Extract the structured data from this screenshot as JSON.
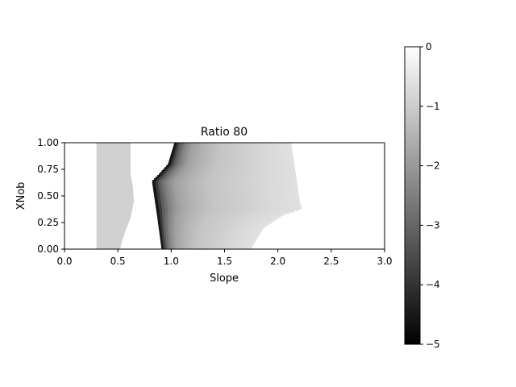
{
  "chart_data": {
    "type": "heatmap",
    "title": "Ratio 80",
    "xlabel": "Slope",
    "ylabel": "XNob",
    "xlim": [
      0.0,
      3.0
    ],
    "ylim": [
      0.0,
      1.0
    ],
    "xticks": [
      0.0,
      0.5,
      1.0,
      1.5,
      2.0,
      2.5,
      3.0
    ],
    "xtick_labels": [
      "0.0",
      "0.5",
      "1.0",
      "1.5",
      "2.0",
      "2.5",
      "3.0"
    ],
    "yticks": [
      0.0,
      0.25,
      0.5,
      0.75,
      1.0
    ],
    "ytick_labels": [
      "0.00",
      "0.25",
      "0.50",
      "0.75",
      "1.00"
    ],
    "grid": false,
    "colormap": "gray",
    "colorbar": {
      "vmin": -5,
      "vmax": 0,
      "ticks": [
        0,
        -1,
        -2,
        -3,
        -4,
        -5
      ],
      "tick_labels": [
        "0",
        "−1",
        "−2",
        "−3",
        "−4",
        "−5"
      ],
      "placement": "right"
    },
    "regions": [
      {
        "name": "left band",
        "value_approx": -0.9,
        "left_edge": [
          [
            0.0,
            0.3
          ],
          [
            1.0,
            0.3
          ]
        ],
        "right_edge": [
          [
            0.0,
            0.52
          ],
          [
            0.08,
            0.54
          ],
          [
            0.2,
            0.58
          ],
          [
            0.3,
            0.62
          ],
          [
            0.45,
            0.65
          ],
          [
            0.6,
            0.64
          ],
          [
            0.7,
            0.62
          ],
          [
            1.0,
            0.62
          ]
        ]
      },
      {
        "name": "main band",
        "left_edge": [
          [
            0.0,
            0.91
          ],
          [
            0.3,
            0.87
          ],
          [
            0.64,
            0.82
          ],
          [
            0.7,
            0.88
          ],
          [
            0.8,
            0.97
          ],
          [
            1.0,
            1.03
          ]
        ],
        "right_edge": [
          [
            0.0,
            1.74
          ],
          [
            0.2,
            1.86
          ],
          [
            0.32,
            2.04
          ],
          [
            0.38,
            2.22
          ],
          [
            0.45,
            2.2
          ],
          [
            0.6,
            2.18
          ],
          [
            0.8,
            2.15
          ],
          [
            1.0,
            2.12
          ]
        ],
        "gradient": [
          [
            0.0,
            -5.0
          ],
          [
            0.02,
            -4.2
          ],
          [
            0.05,
            -3.2
          ],
          [
            0.09,
            -2.5
          ],
          [
            0.15,
            -1.9
          ],
          [
            0.25,
            -1.5
          ],
          [
            0.4,
            -1.15
          ],
          [
            0.6,
            -0.95
          ],
          [
            0.8,
            -0.75
          ],
          [
            1.0,
            -0.6
          ]
        ]
      }
    ]
  }
}
